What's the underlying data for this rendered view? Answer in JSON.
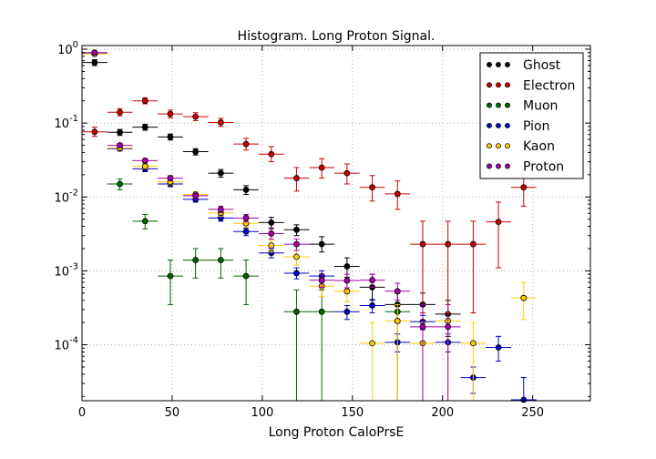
{
  "chart_data": {
    "type": "scatter",
    "title": "Histogram. Long Proton Signal.",
    "xlabel": "Long Proton CaloPrsE",
    "ylabel": "",
    "xlim": [
      0,
      282
    ],
    "ylim": [
      1.75e-05,
      1.12
    ],
    "yscale": "log",
    "grid": true,
    "legend_position": "top-right",
    "x_ticks": [
      0,
      50,
      100,
      150,
      200,
      250
    ],
    "y_ticks": [
      {
        "value": 1,
        "label": "10",
        "exp": "0"
      },
      {
        "value": 0.1,
        "label": "10",
        "exp": "-1"
      },
      {
        "value": 0.01,
        "label": "10",
        "exp": "-2"
      },
      {
        "value": 0.001,
        "label": "10",
        "exp": "-3"
      },
      {
        "value": 0.0001,
        "label": "10",
        "exp": "-4"
      }
    ],
    "bin_half_width": 7,
    "series": [
      {
        "name": "Ghost",
        "color": "#000000",
        "points": [
          {
            "x": 7,
            "y": 0.66,
            "lo": 0.6,
            "hi": 0.72
          },
          {
            "x": 21,
            "y": 0.075,
            "lo": 0.068,
            "hi": 0.082
          },
          {
            "x": 35,
            "y": 0.088,
            "lo": 0.08,
            "hi": 0.096
          },
          {
            "x": 49,
            "y": 0.065,
            "lo": 0.059,
            "hi": 0.071
          },
          {
            "x": 63,
            "y": 0.041,
            "lo": 0.037,
            "hi": 0.045
          },
          {
            "x": 77,
            "y": 0.021,
            "lo": 0.0185,
            "hi": 0.0235
          },
          {
            "x": 91,
            "y": 0.0125,
            "lo": 0.0108,
            "hi": 0.0142
          },
          {
            "x": 105,
            "y": 0.0045,
            "lo": 0.0038,
            "hi": 0.0053
          },
          {
            "x": 119,
            "y": 0.0036,
            "lo": 0.003,
            "hi": 0.0042
          },
          {
            "x": 133,
            "y": 0.0023,
            "lo": 0.0018,
            "hi": 0.0029
          },
          {
            "x": 147,
            "y": 0.00115,
            "lo": 0.00082,
            "hi": 0.0015
          },
          {
            "x": 161,
            "y": 0.0006,
            "lo": 0.0004,
            "hi": 0.0009
          },
          {
            "x": 175,
            "y": 0.00035,
            "lo": 0.0002,
            "hi": 0.0005
          },
          {
            "x": 189,
            "y": 0.00035,
            "lo": 0.0002,
            "hi": 0.0005
          },
          {
            "x": 203,
            "y": 0.00026,
            "lo": 0.00013,
            "hi": 0.0004
          }
        ]
      },
      {
        "name": "Electron",
        "color": "#cc0000",
        "points": [
          {
            "x": 7,
            "y": 0.076,
            "lo": 0.066,
            "hi": 0.088
          },
          {
            "x": 21,
            "y": 0.14,
            "lo": 0.125,
            "hi": 0.157
          },
          {
            "x": 35,
            "y": 0.2,
            "lo": 0.182,
            "hi": 0.22
          },
          {
            "x": 49,
            "y": 0.133,
            "lo": 0.118,
            "hi": 0.15
          },
          {
            "x": 63,
            "y": 0.122,
            "lo": 0.108,
            "hi": 0.138
          },
          {
            "x": 77,
            "y": 0.102,
            "lo": 0.09,
            "hi": 0.116
          },
          {
            "x": 91,
            "y": 0.052,
            "lo": 0.043,
            "hi": 0.062
          },
          {
            "x": 105,
            "y": 0.038,
            "lo": 0.03,
            "hi": 0.048
          },
          {
            "x": 119,
            "y": 0.018,
            "lo": 0.012,
            "hi": 0.025
          },
          {
            "x": 133,
            "y": 0.025,
            "lo": 0.018,
            "hi": 0.033
          },
          {
            "x": 147,
            "y": 0.021,
            "lo": 0.015,
            "hi": 0.028
          },
          {
            "x": 161,
            "y": 0.0135,
            "lo": 0.0088,
            "hi": 0.0195
          },
          {
            "x": 175,
            "y": 0.011,
            "lo": 0.0068,
            "hi": 0.0165
          },
          {
            "x": 189,
            "y": 0.0023,
            "lo": 0.00027,
            "hi": 0.0047
          },
          {
            "x": 203,
            "y": 0.0023,
            "lo": 0.00027,
            "hi": 0.0047
          },
          {
            "x": 217,
            "y": 0.0023,
            "lo": 0.00027,
            "hi": 0.0047
          },
          {
            "x": 231,
            "y": 0.0046,
            "lo": 0.0011,
            "hi": 0.0085
          },
          {
            "x": 245,
            "y": 0.0135,
            "lo": 0.0075,
            "hi": 0.021
          }
        ]
      },
      {
        "name": "Muon",
        "color": "#006600",
        "points": [
          {
            "x": 21,
            "y": 0.015,
            "lo": 0.0125,
            "hi": 0.0175
          },
          {
            "x": 35,
            "y": 0.0047,
            "lo": 0.0037,
            "hi": 0.0058
          },
          {
            "x": 49,
            "y": 0.00085,
            "lo": 0.00035,
            "hi": 0.0014
          },
          {
            "x": 63,
            "y": 0.0014,
            "lo": 0.0008,
            "hi": 0.002
          },
          {
            "x": 77,
            "y": 0.0014,
            "lo": 0.0008,
            "hi": 0.002
          },
          {
            "x": 91,
            "y": 0.00085,
            "lo": 0.00035,
            "hi": 0.0014
          },
          {
            "x": 119,
            "y": 0.00028,
            "lo": 1.75e-05,
            "hi": 0.00055
          },
          {
            "x": 133,
            "y": 0.00028,
            "lo": 1.75e-05,
            "hi": 0.00055
          },
          {
            "x": 175,
            "y": 0.00028,
            "lo": 1.75e-05,
            "hi": 0.00055
          }
        ]
      },
      {
        "name": "Pion",
        "color": "#0000cc",
        "points": [
          {
            "x": 7,
            "y": 0.87,
            "lo": 0.84,
            "hi": 0.9
          },
          {
            "x": 21,
            "y": 0.045,
            "lo": 0.042,
            "hi": 0.048
          },
          {
            "x": 35,
            "y": 0.024,
            "lo": 0.022,
            "hi": 0.026
          },
          {
            "x": 49,
            "y": 0.015,
            "lo": 0.0138,
            "hi": 0.0162
          },
          {
            "x": 63,
            "y": 0.0093,
            "lo": 0.0085,
            "hi": 0.0101
          },
          {
            "x": 77,
            "y": 0.0052,
            "lo": 0.0047,
            "hi": 0.0057
          },
          {
            "x": 91,
            "y": 0.0034,
            "lo": 0.003,
            "hi": 0.0038
          },
          {
            "x": 105,
            "y": 0.00175,
            "lo": 0.0015,
            "hi": 0.002
          },
          {
            "x": 119,
            "y": 0.00093,
            "lo": 0.00078,
            "hi": 0.0011
          },
          {
            "x": 133,
            "y": 0.00085,
            "lo": 0.0007,
            "hi": 0.001
          },
          {
            "x": 147,
            "y": 0.00028,
            "lo": 0.00022,
            "hi": 0.00034
          },
          {
            "x": 161,
            "y": 0.00034,
            "lo": 0.00027,
            "hi": 0.00041
          },
          {
            "x": 175,
            "y": 0.000108,
            "lo": 8e-05,
            "hi": 0.00014
          },
          {
            "x": 189,
            "y": 0.000205,
            "lo": 0.00016,
            "hi": 0.00025
          },
          {
            "x": 203,
            "y": 0.000108,
            "lo": 8e-05,
            "hi": 0.00014
          },
          {
            "x": 217,
            "y": 3.6e-05,
            "lo": 2.2e-05,
            "hi": 5e-05
          },
          {
            "x": 231,
            "y": 9.2e-05,
            "lo": 6e-05,
            "hi": 0.00013
          },
          {
            "x": 245,
            "y": 1.8e-05,
            "lo": 1.75e-05,
            "hi": 3.6e-05
          }
        ]
      },
      {
        "name": "Kaon",
        "color": "#ffcc00",
        "points": [
          {
            "x": 7,
            "y": 0.86,
            "lo": 0.83,
            "hi": 0.89
          },
          {
            "x": 21,
            "y": 0.046,
            "lo": 0.043,
            "hi": 0.049
          },
          {
            "x": 35,
            "y": 0.026,
            "lo": 0.024,
            "hi": 0.028
          },
          {
            "x": 49,
            "y": 0.016,
            "lo": 0.0147,
            "hi": 0.0173
          },
          {
            "x": 63,
            "y": 0.0108,
            "lo": 0.0098,
            "hi": 0.0118
          },
          {
            "x": 77,
            "y": 0.0061,
            "lo": 0.0055,
            "hi": 0.0067
          },
          {
            "x": 91,
            "y": 0.0044,
            "lo": 0.0039,
            "hi": 0.0049
          },
          {
            "x": 105,
            "y": 0.0022,
            "lo": 0.0018,
            "hi": 0.0026
          },
          {
            "x": 119,
            "y": 0.00155,
            "lo": 0.0012,
            "hi": 0.0019
          },
          {
            "x": 133,
            "y": 0.00062,
            "lo": 0.00045,
            "hi": 0.0008
          },
          {
            "x": 147,
            "y": 0.00053,
            "lo": 0.00038,
            "hi": 0.0007
          },
          {
            "x": 161,
            "y": 0.000105,
            "lo": 1.75e-05,
            "hi": 0.0002
          },
          {
            "x": 175,
            "y": 0.00021,
            "lo": 1.75e-05,
            "hi": 0.00035
          },
          {
            "x": 189,
            "y": 0.000105,
            "lo": 1.75e-05,
            "hi": 0.0002
          },
          {
            "x": 203,
            "y": 0.00021,
            "lo": 1.75e-05,
            "hi": 0.00035
          },
          {
            "x": 217,
            "y": 0.000105,
            "lo": 1.75e-05,
            "hi": 0.0002
          },
          {
            "x": 245,
            "y": 0.00043,
            "lo": 0.00022,
            "hi": 0.0007
          }
        ]
      },
      {
        "name": "Proton",
        "color": "#aa00aa",
        "points": [
          {
            "x": 7,
            "y": 0.9,
            "lo": 0.87,
            "hi": 0.93
          },
          {
            "x": 21,
            "y": 0.05,
            "lo": 0.047,
            "hi": 0.053
          },
          {
            "x": 35,
            "y": 0.031,
            "lo": 0.029,
            "hi": 0.033
          },
          {
            "x": 49,
            "y": 0.018,
            "lo": 0.0166,
            "hi": 0.0194
          },
          {
            "x": 63,
            "y": 0.0104,
            "lo": 0.0095,
            "hi": 0.0113
          },
          {
            "x": 77,
            "y": 0.0068,
            "lo": 0.0061,
            "hi": 0.0075
          },
          {
            "x": 91,
            "y": 0.0052,
            "lo": 0.0046,
            "hi": 0.0058
          },
          {
            "x": 105,
            "y": 0.0032,
            "lo": 0.0027,
            "hi": 0.0037
          },
          {
            "x": 119,
            "y": 0.0023,
            "lo": 0.0019,
            "hi": 0.0027
          },
          {
            "x": 133,
            "y": 0.00075,
            "lo": 0.0006,
            "hi": 0.0009
          },
          {
            "x": 147,
            "y": 0.00074,
            "lo": 0.00059,
            "hi": 0.0009
          },
          {
            "x": 161,
            "y": 0.00075,
            "lo": 0.0006,
            "hi": 0.0009
          },
          {
            "x": 175,
            "y": 0.00053,
            "lo": 0.0004,
            "hi": 0.00068
          },
          {
            "x": 189,
            "y": 0.000175,
            "lo": 1.75e-05,
            "hi": 0.00035
          },
          {
            "x": 203,
            "y": 0.000175,
            "lo": 1.75e-05,
            "hi": 0.00035
          }
        ]
      }
    ]
  }
}
